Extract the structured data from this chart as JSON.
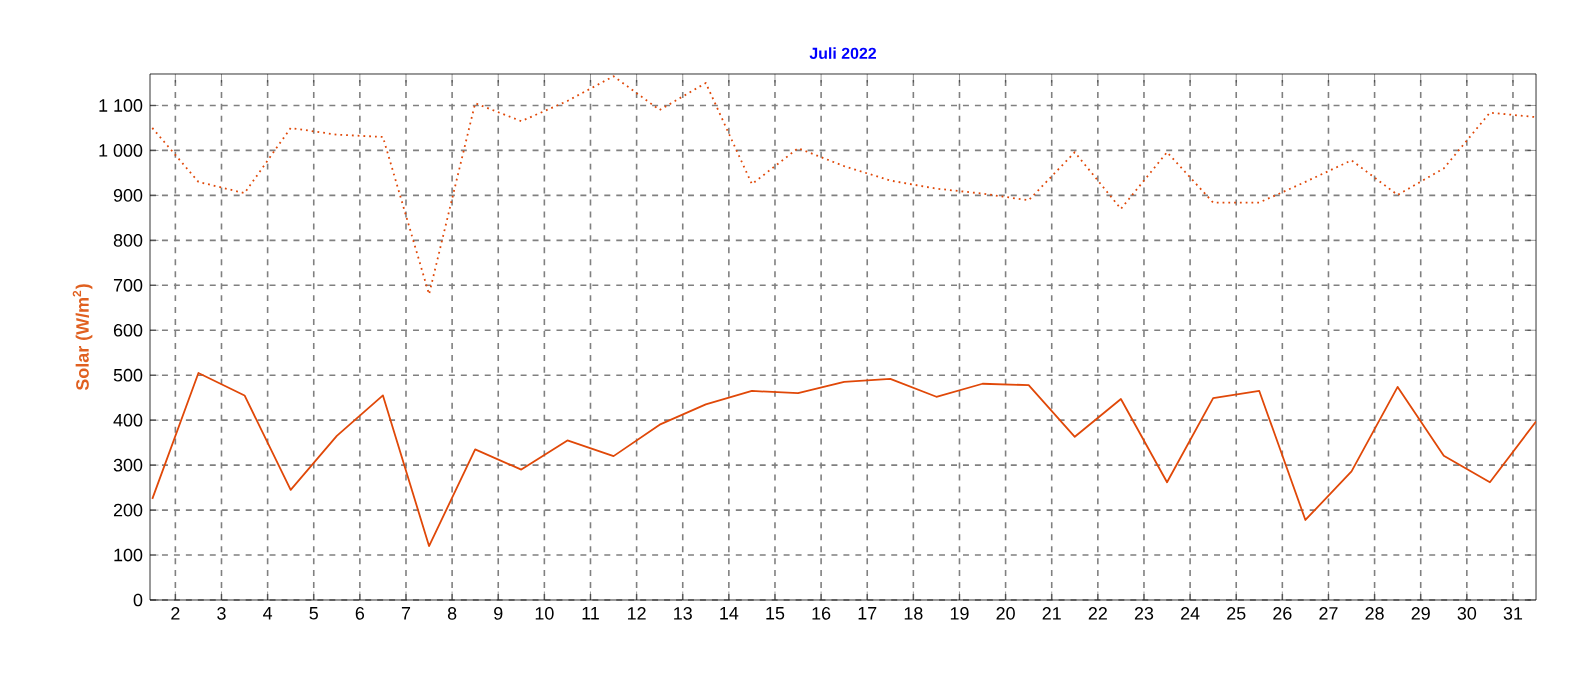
{
  "chart_data": {
    "type": "line",
    "title": "Juli 2022",
    "ylabel": "Solar (W/m$^{2}$)",
    "x": [
      1.5,
      2.5,
      3.5,
      4.5,
      5.5,
      6.5,
      7.5,
      8.5,
      9.5,
      10.5,
      11.5,
      12.5,
      13.5,
      14.5,
      15.5,
      16.5,
      17.5,
      18.5,
      19.5,
      20.5,
      21.5,
      22.5,
      23.5,
      24.5,
      25.5,
      26.5,
      27.5,
      28.5,
      29.5,
      30.5,
      31.5
    ],
    "series": [
      {
        "color": "#e04808",
        "line_style": "dotted",
        "values": [
          1050,
          930,
          905,
          1050,
          1035,
          1030,
          680,
          1105,
          1065,
          1110,
          1165,
          1090,
          1150,
          925,
          1005,
          965,
          933,
          915,
          904,
          889,
          996,
          870,
          996,
          884,
          884,
          930,
          978,
          901,
          960,
          1084,
          1074
        ]
      },
      {
        "color": "#e04808",
        "line_style": "solid",
        "values": [
          225,
          505,
          455,
          245,
          365,
          455,
          120,
          335,
          290,
          355,
          320,
          390,
          435,
          465,
          460,
          485,
          492,
          452,
          481,
          478,
          363,
          447,
          262,
          449,
          465,
          178,
          286,
          474,
          321,
          262,
          397
        ]
      }
    ],
    "xlim": [
      1.45,
      31.5
    ],
    "ylim": [
      0,
      1170
    ],
    "xticks": [
      2,
      3,
      4,
      5,
      6,
      7,
      8,
      9,
      10,
      11,
      12,
      13,
      14,
      15,
      16,
      17,
      18,
      19,
      20,
      21,
      22,
      23,
      24,
      25,
      26,
      27,
      28,
      29,
      30,
      31
    ],
    "yticks": [
      0,
      100,
      200,
      300,
      400,
      500,
      600,
      700,
      800,
      900,
      {
        "value": 1000,
        "label": "1 000"
      },
      {
        "value": 1100,
        "label": "1 100"
      }
    ],
    "grid": true,
    "marker": "none"
  }
}
